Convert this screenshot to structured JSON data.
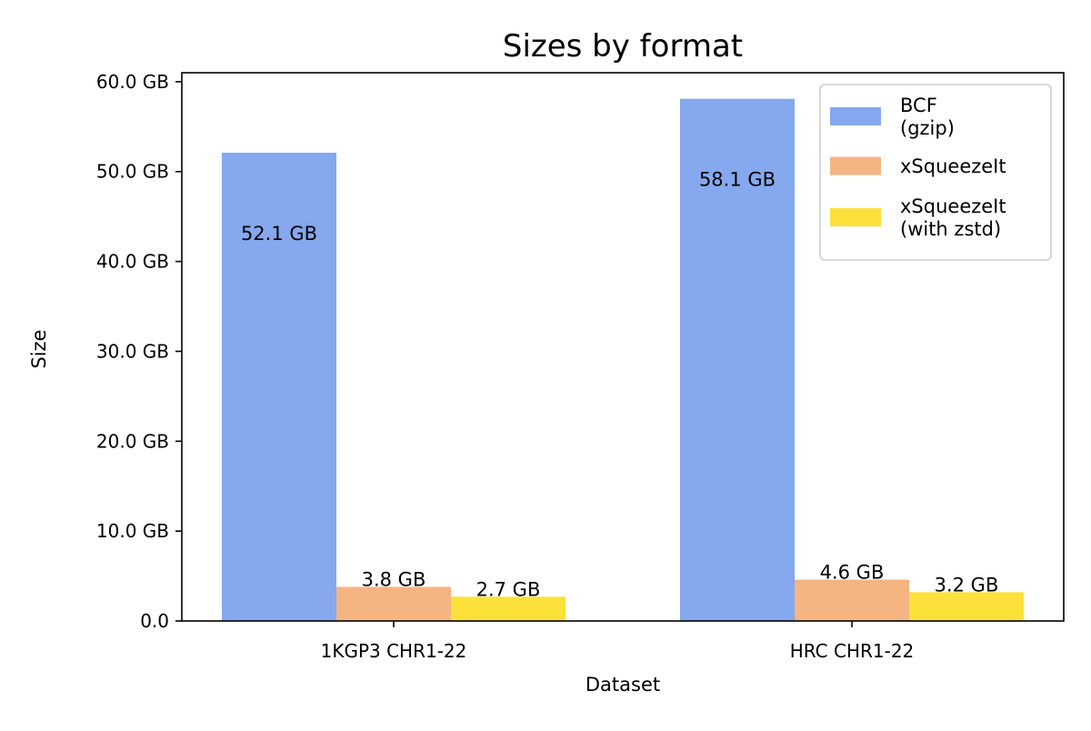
{
  "chart_data": {
    "type": "bar",
    "title": "Sizes by format",
    "xlabel": "Dataset",
    "ylabel": "Size",
    "categories": [
      "1KGP3 CHR1-22",
      "HRC CHR1-22"
    ],
    "ylim": [
      0,
      61
    ],
    "yticks": [
      0,
      10,
      20,
      30,
      40,
      50,
      60
    ],
    "ytick_labels": [
      "0.0",
      "10.0 GB",
      "20.0 GB",
      "30.0 GB",
      "40.0 GB",
      "50.0 GB",
      "60.0 GB"
    ],
    "grid": false,
    "legend_position": "top-right",
    "series": [
      {
        "name": "BCF\n(gzip)",
        "color": "#85a8ee",
        "values": [
          52.1,
          58.1
        ],
        "labels": [
          "52.1 GB",
          "58.1 GB"
        ]
      },
      {
        "name": "xSqueezeIt",
        "color": "#f4b583",
        "values": [
          3.8,
          4.6
        ],
        "labels": [
          "3.8 GB",
          "4.6 GB"
        ]
      },
      {
        "name": "xSqueezeIt\n(with zstd)",
        "color": "#fce13a",
        "values": [
          2.7,
          3.2
        ],
        "labels": [
          "2.7 GB",
          "3.2 GB"
        ]
      }
    ]
  }
}
